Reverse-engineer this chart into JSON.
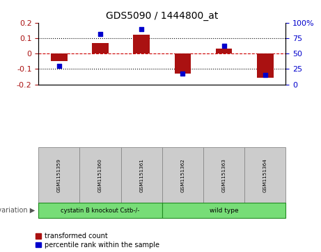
{
  "title": "GDS5090 / 1444800_at",
  "samples": [
    "GSM1151359",
    "GSM1151360",
    "GSM1151361",
    "GSM1151362",
    "GSM1151363",
    "GSM1151364"
  ],
  "transformed_count": [
    -0.05,
    0.07,
    0.12,
    -0.13,
    0.03,
    -0.155
  ],
  "percentile_rank": [
    30,
    82,
    90,
    18,
    63,
    15
  ],
  "ylim_left": [
    -0.2,
    0.2
  ],
  "ylim_right": [
    0,
    100
  ],
  "bar_color": "#aa1111",
  "point_color": "#0000cc",
  "group1_label": "cystatin B knockout Cstb-/-",
  "group2_label": "wild type",
  "group_color": "#77dd77",
  "group_border_color": "#228B22",
  "sample_cell_color": "#cccccc",
  "sample_cell_border": "#888888",
  "legend_bar_label": "transformed count",
  "legend_point_label": "percentile rank within the sample",
  "yticks_left": [
    -0.2,
    -0.1,
    0.0,
    0.1,
    0.2
  ],
  "ytick_labels_left": [
    "-0.2",
    "-0.1",
    "0",
    "0.1",
    "0.2"
  ],
  "yticks_right": [
    0,
    25,
    50,
    75,
    100
  ],
  "ytick_labels_right": [
    "0",
    "25",
    "50",
    "75",
    "100%"
  ],
  "background_color": "#ffffff",
  "zero_line_color": "#cc0000",
  "dotted_line_color": "#000000"
}
